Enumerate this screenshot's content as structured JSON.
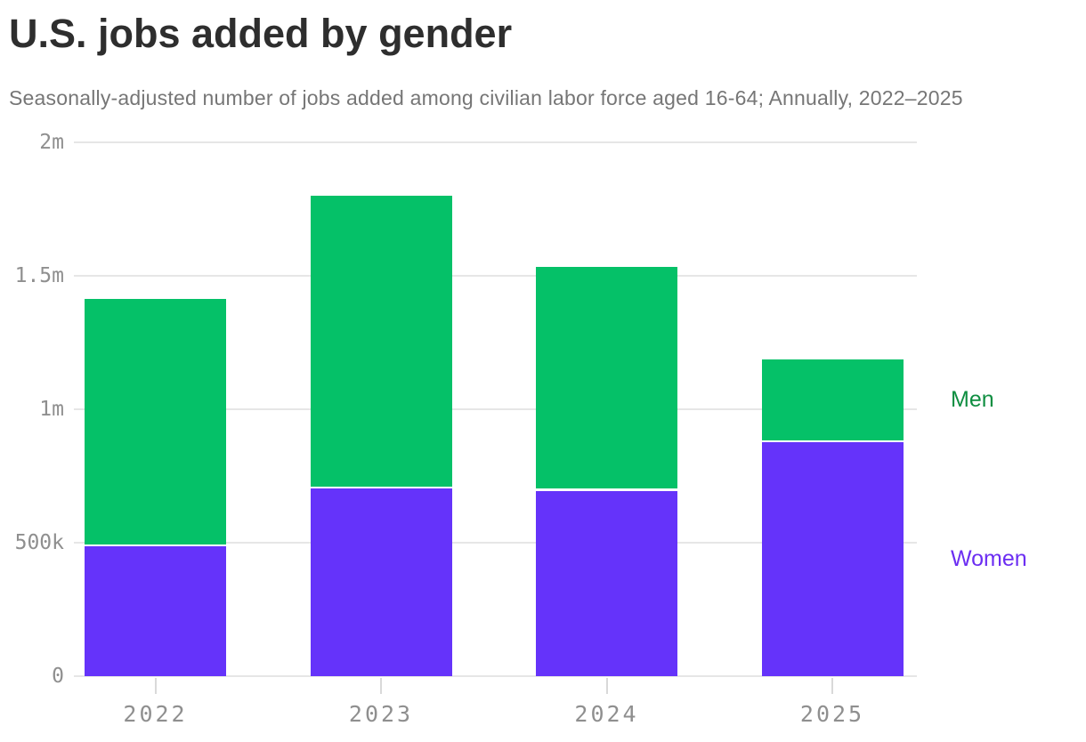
{
  "header": {
    "title": "U.S. jobs added by gender",
    "subtitle": "Seasonally-adjusted number of jobs added among civilian labor force aged 16-64; Annually, 2022–2025"
  },
  "chart_data": {
    "type": "bar",
    "stacked": true,
    "title": "U.S. jobs added by gender",
    "categories": [
      "2022",
      "2023",
      "2024",
      "2025"
    ],
    "series": [
      {
        "name": "Men",
        "color": "#05c168",
        "label_color": "#0f8e41",
        "values": [
          926000,
          1095000,
          838000,
          310000
        ]
      },
      {
        "name": "Women",
        "color": "#6533fa",
        "label_color": "#6c2ef2",
        "values": [
          487000,
          705000,
          695000,
          878000
        ]
      }
    ],
    "stack_order_bottom_to_top": [
      "Women",
      "Men"
    ],
    "ylim": [
      0,
      2000000
    ],
    "y_ticks": [
      {
        "value": 0,
        "label": "0"
      },
      {
        "value": 500000,
        "label": "500k"
      },
      {
        "value": 1000000,
        "label": "1m"
      },
      {
        "value": 1500000,
        "label": "1.5m"
      },
      {
        "value": 2000000,
        "label": "2m"
      }
    ],
    "grid": "horizontal",
    "legend_position": "right-of-last-bar",
    "colors": {
      "grid": "#e6e6e6",
      "tick": "#d9d9d9",
      "axis_label": "#8f8f8f"
    }
  }
}
